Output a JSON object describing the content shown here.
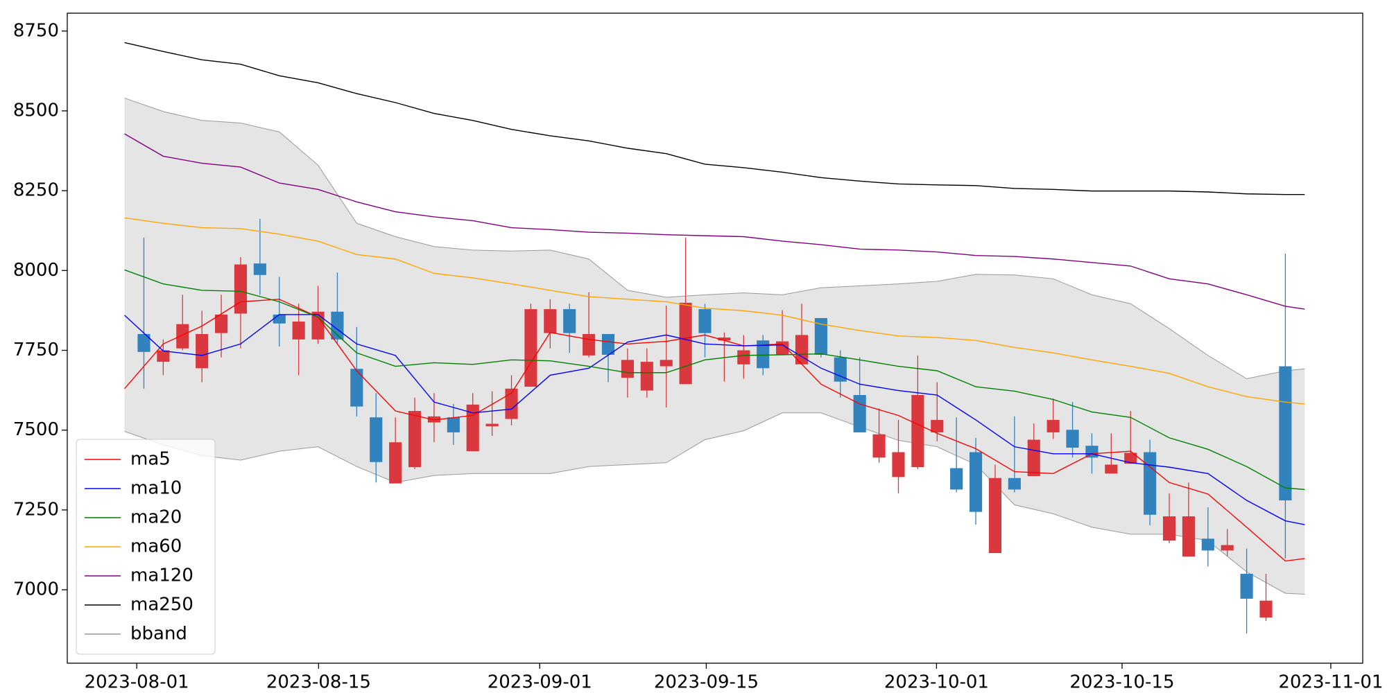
{
  "chart_data": {
    "type": "candlestick",
    "x": [
      0,
      1,
      2,
      3,
      4,
      5,
      6,
      7,
      8,
      9,
      10,
      11,
      12,
      13,
      14,
      15,
      16,
      17,
      18,
      19,
      20,
      21,
      22,
      23,
      24,
      25,
      26,
      27,
      28,
      29,
      30,
      31,
      32,
      33,
      34,
      35,
      36,
      37,
      38,
      39,
      40,
      41,
      42,
      43,
      44,
      45,
      46,
      47,
      48,
      49,
      50,
      51,
      52,
      53,
      54,
      55,
      56,
      57,
      58,
      59
    ],
    "open": [
      7801,
      7714,
      7756,
      7694,
      7804,
      7865,
      8022,
      7862,
      7784,
      7784,
      7871,
      7692,
      7540,
      7333,
      7384,
      7524,
      7540,
      7434,
      7512,
      7535,
      7636,
      7804,
      7879,
      7734,
      7801,
      7664,
      7624,
      7700,
      7644,
      7879,
      7781,
      7706,
      7781,
      7736,
      7706,
      7851,
      7728,
      7610,
      7414,
      7353,
      7384,
      7493,
      7381,
      7431,
      7115,
      7350,
      7356,
      7493,
      7501,
      7451,
      7364,
      7395,
      7431,
      7154,
      7104,
      7160,
      7123,
      7050,
      6913,
      7700
    ],
    "high": [
      8103,
      7784,
      7924,
      7874,
      7924,
      8042,
      8162,
      7980,
      7896,
      7952,
      7994,
      7823,
      7616,
      7540,
      7602,
      7616,
      7582,
      7616,
      7622,
      7672,
      7896,
      7910,
      7896,
      7932,
      7801,
      7756,
      7756,
      7890,
      8103,
      7896,
      7806,
      7798,
      7798,
      7876,
      7896,
      7851,
      7750,
      7728,
      7568,
      7532,
      7734,
      7650,
      7540,
      7476,
      7392,
      7543,
      7521,
      7599,
      7588,
      7490,
      7490,
      7560,
      7470,
      7302,
      7336,
      7258,
      7190,
      7129,
      7050,
      8053
    ],
    "low": [
      7630,
      7672,
      7750,
      7650,
      7728,
      7756,
      7924,
      7762,
      7672,
      7770,
      7770,
      7543,
      7336,
      7333,
      7378,
      7462,
      7454,
      7434,
      7482,
      7515,
      7636,
      7756,
      7742,
      7728,
      7650,
      7602,
      7602,
      7571,
      7644,
      7728,
      7652,
      7661,
      7672,
      7736,
      7706,
      7728,
      7602,
      7493,
      7398,
      7302,
      7378,
      7465,
      7305,
      7204,
      7115,
      7305,
      7356,
      7473,
      7414,
      7364,
      7364,
      7395,
      7202,
      7146,
      7104,
      7073,
      7106,
      6863,
      6902,
      7098
    ],
    "close": [
      7745,
      7750,
      7832,
      7801,
      7862,
      8019,
      7986,
      7834,
      7840,
      7871,
      7784,
      7574,
      7400,
      7462,
      7560,
      7543,
      7493,
      7580,
      7520,
      7630,
      7879,
      7879,
      7804,
      7801,
      7736,
      7720,
      7714,
      7720,
      7899,
      7804,
      7790,
      7750,
      7694,
      7778,
      7798,
      7736,
      7652,
      7493,
      7487,
      7431,
      7610,
      7532,
      7314,
      7244,
      7350,
      7314,
      7470,
      7532,
      7445,
      7414,
      7392,
      7429,
      7235,
      7230,
      7230,
      7123,
      7140,
      6972,
      6966,
      7280
    ],
    "up_color": "#d9393e",
    "down_color": "#3182bd",
    "lines": {
      "x": [
        -1,
        1,
        3,
        5,
        7,
        9,
        11,
        13,
        15,
        17,
        19,
        21,
        23,
        25,
        27,
        29,
        31,
        33,
        35,
        37,
        39,
        41,
        43,
        45,
        47,
        49,
        51,
        53,
        55,
        57,
        59,
        60
      ],
      "series": [
        {
          "name": "ma5",
          "color": "#ff0000",
          "values": [
            7630,
            7770,
            7826,
            7902,
            7910,
            7854,
            7686,
            7560,
            7532,
            7546,
            7616,
            7806,
            7784,
            7770,
            7778,
            7798,
            7764,
            7770,
            7644,
            7582,
            7546,
            7490,
            7442,
            7370,
            7364,
            7426,
            7434,
            7336,
            7300,
            7196,
            7090,
            7098
          ]
        },
        {
          "name": "ma10",
          "color": "#0000ff",
          "values": [
            7860,
            7748,
            7734,
            7770,
            7862,
            7862,
            7770,
            7734,
            7588,
            7554,
            7566,
            7672,
            7694,
            7776,
            7798,
            7770,
            7764,
            7767,
            7694,
            7644,
            7624,
            7610,
            7532,
            7448,
            7426,
            7426,
            7398,
            7384,
            7364,
            7280,
            7216,
            7204
          ]
        },
        {
          "name": "ma20",
          "color": "#008000",
          "values": [
            8002,
            7958,
            7938,
            7935,
            7902,
            7854,
            7742,
            7700,
            7711,
            7706,
            7720,
            7717,
            7700,
            7680,
            7680,
            7720,
            7734,
            7736,
            7739,
            7720,
            7700,
            7686,
            7636,
            7622,
            7596,
            7557,
            7540,
            7476,
            7440,
            7386,
            7319,
            7314
          ]
        },
        {
          "name": "ma60",
          "color": "#ffa500",
          "values": [
            8165,
            8148,
            8134,
            8131,
            8114,
            8092,
            8050,
            8036,
            7991,
            7977,
            7958,
            7938,
            7918,
            7910,
            7902,
            7882,
            7874,
            7860,
            7832,
            7812,
            7795,
            7790,
            7781,
            7759,
            7742,
            7720,
            7700,
            7678,
            7636,
            7605,
            7588,
            7582
          ]
        },
        {
          "name": "ma120",
          "color": "#800080",
          "values": [
            8428,
            8358,
            8336,
            8324,
            8274,
            8254,
            8215,
            8184,
            8168,
            8156,
            8134,
            8128,
            8120,
            8117,
            8112,
            8109,
            8106,
            8092,
            8081,
            8067,
            8064,
            8058,
            8047,
            8044,
            8036,
            8025,
            8014,
            7974,
            7958,
            7924,
            7888,
            7879
          ]
        },
        {
          "name": "ma250",
          "color": "#000000",
          "values": [
            8714,
            8686,
            8660,
            8646,
            8610,
            8588,
            8554,
            8526,
            8492,
            8470,
            8442,
            8422,
            8406,
            8383,
            8366,
            8333,
            8322,
            8308,
            8291,
            8280,
            8271,
            8268,
            8266,
            8257,
            8254,
            8249,
            8249,
            8249,
            8246,
            8240,
            8238,
            8238
          ]
        }
      ]
    },
    "bband": {
      "name": "bband",
      "color": "#999999",
      "fill": "#e5e5e5",
      "upper": [
        8540,
        8498,
        8470,
        8462,
        8434,
        8330,
        8148,
        8106,
        8075,
        8064,
        8061,
        8064,
        8036,
        7938,
        7916,
        7924,
        7930,
        7924,
        7946,
        7952,
        7958,
        7966,
        7988,
        7986,
        7974,
        7924,
        7896,
        7818,
        7734,
        7661,
        7686,
        7692
      ],
      "lower": [
        7496,
        7454,
        7420,
        7406,
        7434,
        7448,
        7386,
        7336,
        7358,
        7364,
        7364,
        7364,
        7386,
        7392,
        7398,
        7470,
        7498,
        7554,
        7554,
        7510,
        7468,
        7448,
        7392,
        7266,
        7238,
        7196,
        7174,
        7174,
        7154,
        7056,
        6989,
        6986
      ]
    },
    "xlim": [
      -3.96,
      63.0
    ],
    "xticks": [
      {
        "value": -0.37,
        "label": "2023-08-01"
      },
      {
        "value": 9.03,
        "label": "2023-08-15"
      },
      {
        "value": 20.46,
        "label": "2023-09-01"
      },
      {
        "value": 29.07,
        "label": "2023-09-15"
      },
      {
        "value": 40.97,
        "label": "2023-10-01"
      },
      {
        "value": 50.56,
        "label": "2023-10-15"
      },
      {
        "value": 61.35,
        "label": "2023-11-01"
      }
    ],
    "ylim": [
      6770,
      8806
    ],
    "yticks": [
      7000,
      7250,
      7500,
      7750,
      8000,
      8250,
      8500,
      8750
    ],
    "legend": "lower left"
  }
}
